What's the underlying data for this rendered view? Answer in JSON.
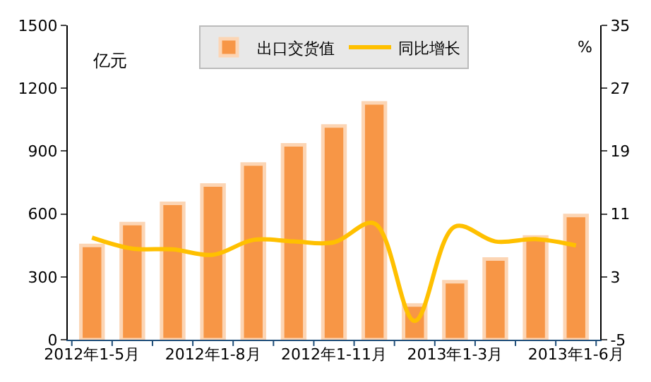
{
  "chart_data": {
    "type": "bar",
    "ylabel": "亿元",
    "y2label": "%",
    "categories": [
      "2012年1-5月",
      null,
      null,
      "2012年1-8月",
      null,
      null,
      "2012年1-11月",
      null,
      null,
      "2013年1-3月",
      null,
      null,
      "2013年1-6月"
    ],
    "series": [
      {
        "name": "出口交货值",
        "color": "#f79646",
        "values": [
          450,
          554,
          651,
          738,
          838,
          930,
          1020,
          1130,
          166,
          277,
          385,
          490,
          593
        ]
      },
      {
        "name": "同比增长",
        "type": "line",
        "axis": "y2",
        "color": "#ffc000",
        "values": [
          8.0,
          6.6,
          6.5,
          5.8,
          7.7,
          7.5,
          7.4,
          9.8,
          -2.6,
          9.4,
          7.5,
          7.8,
          7.0
        ]
      }
    ],
    "ylim": [
      0,
      1500
    ],
    "yticks": [
      0,
      300,
      600,
      900,
      1200,
      1500
    ],
    "y2lim": [
      -5,
      35
    ],
    "y2ticks": [
      -5,
      3,
      11,
      19,
      27,
      35
    ],
    "legend": "top",
    "marker": "none",
    "line_style": "solid"
  }
}
